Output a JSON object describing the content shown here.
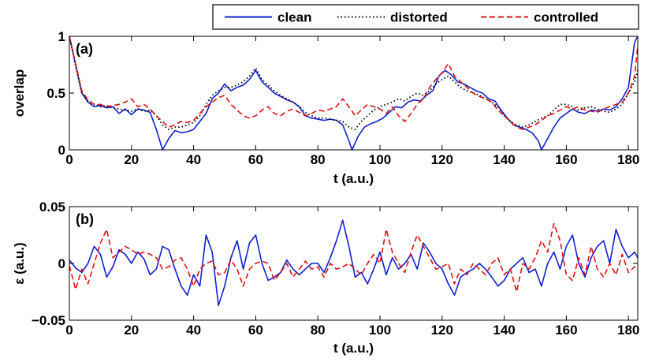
{
  "colors": {
    "clean": "#1020d0",
    "distorted": "#000000",
    "controlled": "#e01010",
    "axis": "#000000",
    "background": "#ffffff"
  },
  "legend": {
    "placement": "top-right",
    "items": [
      {
        "key": "clean",
        "label": "clean",
        "style": "solid"
      },
      {
        "key": "distorted",
        "label": "distorted",
        "style": "dotted"
      },
      {
        "key": "controlled",
        "label": "controlled",
        "style": "dashed"
      }
    ]
  },
  "chart_data": [
    {
      "type": "line",
      "panel_label": "(a)",
      "title": "",
      "xlabel": "t (a.u.)",
      "ylabel": "overlap",
      "xlim": [
        0,
        183
      ],
      "ylim": [
        0,
        1
      ],
      "xticks": [
        0,
        20,
        40,
        60,
        80,
        100,
        120,
        140,
        160,
        180
      ],
      "xtick_labels": [
        "0",
        "20",
        "40",
        "60",
        "80",
        "100",
        "120",
        "140",
        "160",
        "180"
      ],
      "yticks": [
        0,
        0.5,
        1
      ],
      "ytick_labels": [
        "0",
        "0.5",
        "1"
      ],
      "series": [
        {
          "name": "clean",
          "style": "solid",
          "x": [
            0,
            2,
            4,
            6,
            8,
            10,
            12,
            14,
            16,
            18,
            20,
            22,
            24,
            26,
            28,
            30,
            32,
            34,
            36,
            38,
            40,
            42,
            44,
            46,
            48,
            50,
            52,
            54,
            56,
            58,
            60,
            62,
            64,
            66,
            68,
            70,
            72,
            74,
            76,
            78,
            80,
            82,
            84,
            86,
            88,
            90,
            91,
            93,
            95,
            97,
            99,
            101,
            103,
            105,
            107,
            109,
            111,
            113,
            115,
            117,
            119,
            121,
            123,
            125,
            127,
            129,
            131,
            133,
            135,
            137,
            139,
            141,
            143,
            145,
            147,
            149,
            151,
            152,
            154,
            156,
            158,
            160,
            162,
            164,
            166,
            168,
            170,
            172,
            174,
            176,
            178,
            180,
            181,
            182,
            183
          ],
          "y": [
            1.0,
            0.75,
            0.5,
            0.42,
            0.38,
            0.39,
            0.37,
            0.38,
            0.32,
            0.36,
            0.31,
            0.36,
            0.35,
            0.33,
            0.18,
            0.0,
            0.1,
            0.17,
            0.15,
            0.16,
            0.18,
            0.25,
            0.32,
            0.45,
            0.5,
            0.58,
            0.52,
            0.55,
            0.57,
            0.62,
            0.7,
            0.6,
            0.55,
            0.5,
            0.47,
            0.44,
            0.42,
            0.38,
            0.3,
            0.28,
            0.27,
            0.26,
            0.27,
            0.26,
            0.22,
            0.08,
            0.0,
            0.12,
            0.2,
            0.23,
            0.25,
            0.28,
            0.33,
            0.38,
            0.37,
            0.42,
            0.44,
            0.43,
            0.48,
            0.52,
            0.65,
            0.7,
            0.66,
            0.6,
            0.58,
            0.55,
            0.52,
            0.5,
            0.45,
            0.43,
            0.35,
            0.28,
            0.22,
            0.2,
            0.18,
            0.15,
            0.08,
            0.0,
            0.1,
            0.2,
            0.28,
            0.32,
            0.36,
            0.33,
            0.32,
            0.35,
            0.34,
            0.36,
            0.35,
            0.38,
            0.45,
            0.55,
            0.75,
            0.95,
            1.0
          ]
        },
        {
          "name": "distorted",
          "style": "dotted",
          "x": [
            0,
            2,
            4,
            6,
            8,
            10,
            12,
            14,
            16,
            18,
            20,
            22,
            24,
            26,
            28,
            30,
            32,
            34,
            36,
            38,
            40,
            42,
            44,
            46,
            48,
            50,
            52,
            54,
            56,
            58,
            60,
            62,
            64,
            66,
            68,
            70,
            72,
            74,
            76,
            78,
            80,
            82,
            84,
            86,
            88,
            90,
            92,
            94,
            96,
            98,
            100,
            102,
            104,
            106,
            108,
            110,
            112,
            114,
            116,
            118,
            120,
            122,
            124,
            126,
            128,
            130,
            132,
            134,
            136,
            138,
            140,
            142,
            144,
            146,
            148,
            150,
            152,
            154,
            156,
            158,
            160,
            162,
            164,
            166,
            168,
            170,
            172,
            174,
            176,
            178,
            180,
            182,
            183
          ],
          "y": [
            1.0,
            0.74,
            0.5,
            0.43,
            0.4,
            0.38,
            0.39,
            0.37,
            0.36,
            0.35,
            0.34,
            0.36,
            0.34,
            0.35,
            0.3,
            0.22,
            0.18,
            0.2,
            0.2,
            0.22,
            0.24,
            0.3,
            0.4,
            0.48,
            0.52,
            0.55,
            0.55,
            0.57,
            0.6,
            0.65,
            0.72,
            0.62,
            0.57,
            0.52,
            0.48,
            0.45,
            0.42,
            0.38,
            0.33,
            0.3,
            0.28,
            0.28,
            0.27,
            0.26,
            0.25,
            0.2,
            0.18,
            0.25,
            0.3,
            0.35,
            0.38,
            0.4,
            0.42,
            0.45,
            0.43,
            0.47,
            0.5,
            0.48,
            0.52,
            0.58,
            0.62,
            0.65,
            0.6,
            0.55,
            0.52,
            0.5,
            0.48,
            0.45,
            0.42,
            0.38,
            0.3,
            0.25,
            0.22,
            0.2,
            0.22,
            0.25,
            0.28,
            0.3,
            0.35,
            0.4,
            0.4,
            0.38,
            0.35,
            0.37,
            0.38,
            0.36,
            0.34,
            0.33,
            0.36,
            0.4,
            0.5,
            0.6,
            0.7
          ]
        },
        {
          "name": "controlled",
          "style": "dashed",
          "x": [
            0,
            2,
            4,
            6,
            8,
            10,
            12,
            14,
            16,
            18,
            20,
            22,
            24,
            26,
            28,
            30,
            32,
            34,
            36,
            38,
            40,
            42,
            44,
            46,
            48,
            50,
            52,
            54,
            56,
            58,
            60,
            62,
            64,
            66,
            68,
            70,
            72,
            74,
            76,
            78,
            80,
            82,
            84,
            86,
            88,
            90,
            92,
            94,
            96,
            98,
            100,
            102,
            104,
            106,
            108,
            110,
            112,
            114,
            116,
            118,
            120,
            122,
            124,
            126,
            128,
            130,
            132,
            134,
            136,
            138,
            140,
            142,
            144,
            146,
            148,
            150,
            152,
            154,
            156,
            158,
            160,
            162,
            164,
            166,
            168,
            170,
            172,
            174,
            176,
            178,
            180,
            182,
            183
          ],
          "y": [
            1.0,
            0.76,
            0.52,
            0.44,
            0.4,
            0.4,
            0.38,
            0.39,
            0.4,
            0.42,
            0.45,
            0.38,
            0.4,
            0.36,
            0.3,
            0.25,
            0.2,
            0.22,
            0.25,
            0.24,
            0.26,
            0.32,
            0.38,
            0.42,
            0.46,
            0.48,
            0.4,
            0.35,
            0.3,
            0.28,
            0.3,
            0.35,
            0.38,
            0.32,
            0.3,
            0.34,
            0.36,
            0.33,
            0.3,
            0.32,
            0.35,
            0.34,
            0.36,
            0.38,
            0.45,
            0.38,
            0.3,
            0.35,
            0.4,
            0.38,
            0.36,
            0.32,
            0.38,
            0.3,
            0.25,
            0.32,
            0.4,
            0.45,
            0.55,
            0.62,
            0.68,
            0.76,
            0.65,
            0.6,
            0.55,
            0.5,
            0.47,
            0.45,
            0.42,
            0.35,
            0.3,
            0.25,
            0.2,
            0.18,
            0.2,
            0.22,
            0.26,
            0.3,
            0.32,
            0.35,
            0.38,
            0.36,
            0.38,
            0.35,
            0.34,
            0.33,
            0.36,
            0.38,
            0.4,
            0.42,
            0.5,
            0.65,
            0.92
          ]
        }
      ]
    },
    {
      "type": "line",
      "panel_label": "(b)",
      "title": "",
      "xlabel": "t (a.u.)",
      "ylabel": "ε (a.u.)",
      "xlim": [
        0,
        183
      ],
      "ylim": [
        -0.05,
        0.05
      ],
      "xticks": [
        0,
        20,
        40,
        60,
        80,
        100,
        120,
        140,
        160,
        180
      ],
      "xtick_labels": [
        "0",
        "20",
        "40",
        "60",
        "80",
        "100",
        "120",
        "140",
        "160",
        "180"
      ],
      "yticks": [
        -0.05,
        0,
        0.05
      ],
      "ytick_labels": [
        "−0.05",
        "0",
        "0.05"
      ],
      "series": [
        {
          "name": "clean",
          "style": "solid",
          "x": [
            0,
            2,
            4,
            6,
            8,
            10,
            12,
            14,
            16,
            18,
            20,
            22,
            24,
            26,
            28,
            30,
            32,
            34,
            36,
            38,
            40,
            42,
            44,
            46,
            48,
            50,
            52,
            54,
            56,
            58,
            60,
            62,
            64,
            66,
            68,
            70,
            72,
            74,
            76,
            78,
            80,
            82,
            84,
            86,
            88,
            90,
            92,
            94,
            96,
            98,
            100,
            102,
            104,
            106,
            108,
            110,
            112,
            114,
            116,
            118,
            120,
            122,
            124,
            126,
            128,
            130,
            132,
            134,
            136,
            138,
            140,
            142,
            144,
            146,
            148,
            150,
            152,
            154,
            156,
            158,
            160,
            162,
            164,
            166,
            168,
            170,
            172,
            174,
            176,
            178,
            180,
            182,
            183
          ],
          "y": [
            0.003,
            -0.004,
            -0.008,
            0.0,
            0.015,
            0.008,
            -0.012,
            -0.003,
            0.012,
            0.008,
            0.0,
            0.01,
            0.004,
            -0.01,
            -0.005,
            0.015,
            0.012,
            -0.005,
            -0.02,
            -0.028,
            -0.01,
            -0.02,
            0.025,
            0.01,
            -0.037,
            -0.02,
            0.005,
            0.02,
            -0.005,
            0.018,
            0.025,
            0.0,
            -0.015,
            -0.012,
            -0.008,
            0.003,
            -0.005,
            -0.01,
            -0.005,
            0.0,
            0.0,
            -0.008,
            0.005,
            0.02,
            0.038,
            0.015,
            -0.012,
            -0.008,
            -0.018,
            -0.005,
            0.01,
            -0.01,
            0.005,
            -0.005,
            0.0,
            0.008,
            -0.005,
            0.018,
            0.01,
            0.0,
            -0.005,
            -0.018,
            -0.028,
            -0.012,
            -0.008,
            -0.005,
            0.0,
            -0.005,
            -0.012,
            -0.02,
            -0.015,
            -0.005,
            0.0,
            0.005,
            -0.008,
            -0.005,
            -0.02,
            0.0,
            0.01,
            -0.005,
            0.015,
            0.025,
            0.0,
            -0.012,
            0.005,
            0.015,
            0.02,
            0.0,
            0.03,
            0.015,
            0.005,
            0.01,
            0.005
          ]
        },
        {
          "name": "controlled",
          "style": "dashed",
          "x": [
            0,
            2,
            4,
            6,
            8,
            10,
            12,
            14,
            16,
            18,
            20,
            22,
            24,
            26,
            28,
            30,
            32,
            34,
            36,
            38,
            40,
            42,
            44,
            46,
            48,
            50,
            52,
            54,
            56,
            58,
            60,
            62,
            64,
            66,
            68,
            70,
            72,
            74,
            76,
            78,
            80,
            82,
            84,
            86,
            88,
            90,
            92,
            94,
            96,
            98,
            100,
            102,
            104,
            106,
            108,
            110,
            112,
            114,
            116,
            118,
            120,
            122,
            124,
            126,
            128,
            130,
            132,
            134,
            136,
            138,
            140,
            142,
            144,
            146,
            148,
            150,
            152,
            154,
            156,
            158,
            160,
            162,
            164,
            166,
            168,
            170,
            172,
            174,
            176,
            178,
            180,
            182,
            183
          ],
          "y": [
            -0.002,
            -0.023,
            -0.005,
            -0.018,
            0.0,
            0.018,
            0.03,
            0.005,
            0.01,
            0.015,
            0.012,
            0.008,
            0.01,
            0.008,
            0.005,
            -0.005,
            -0.003,
            0.003,
            0.005,
            -0.005,
            -0.02,
            -0.005,
            0.0,
            0.002,
            -0.01,
            -0.008,
            0.003,
            -0.005,
            -0.02,
            -0.005,
            0.0,
            0.002,
            0.0,
            -0.015,
            -0.008,
            0.0,
            -0.012,
            -0.005,
            0.002,
            -0.005,
            -0.003,
            -0.012,
            0.0,
            -0.005,
            -0.003,
            0.0,
            -0.005,
            -0.01,
            0.0,
            0.008,
            0.0,
            0.03,
            0.01,
            0.0,
            -0.008,
            0.01,
            0.025,
            0.015,
            0.005,
            -0.005,
            -0.003,
            0.0,
            -0.018,
            -0.005,
            -0.01,
            0.0,
            -0.005,
            -0.01,
            0.0,
            0.005,
            -0.01,
            -0.005,
            -0.025,
            0.0,
            -0.005,
            0.005,
            0.02,
            0.01,
            0.035,
            0.02,
            -0.01,
            -0.015,
            0.005,
            -0.01,
            0.015,
            -0.005,
            -0.012,
            0.0,
            -0.01,
            0.008,
            -0.008,
            -0.003,
            -0.003
          ]
        }
      ]
    }
  ]
}
